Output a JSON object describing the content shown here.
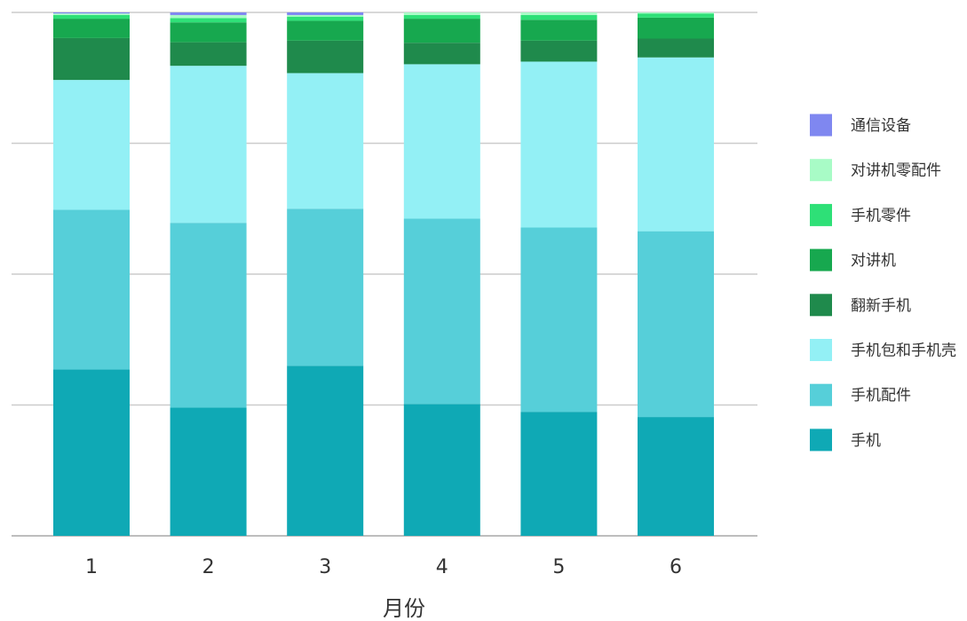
{
  "chart_data": {
    "type": "bar",
    "stacked": true,
    "normalized": true,
    "title": "",
    "xlabel": "月份",
    "ylabel": "",
    "ylim": [
      0,
      1
    ],
    "grid": true,
    "legend_position": "right",
    "categories": [
      "1",
      "2",
      "3",
      "4",
      "5",
      "6"
    ],
    "series": [
      {
        "name": "手机",
        "color": "#0fa9b5",
        "values": [
          0.318,
          0.245,
          0.325,
          0.252,
          0.237,
          0.227
        ]
      },
      {
        "name": "手机配件",
        "color": "#56cfd9",
        "values": [
          0.305,
          0.353,
          0.3,
          0.354,
          0.352,
          0.355
        ]
      },
      {
        "name": "手机包和手机壳",
        "color": "#93f0f5",
        "values": [
          0.248,
          0.3,
          0.259,
          0.295,
          0.317,
          0.332
        ]
      },
      {
        "name": "翻新手机",
        "color": "#1f8a4c",
        "values": [
          0.08,
          0.045,
          0.062,
          0.041,
          0.04,
          0.036
        ]
      },
      {
        "name": "对讲机",
        "color": "#17a84f",
        "values": [
          0.037,
          0.038,
          0.038,
          0.046,
          0.04,
          0.04
        ]
      },
      {
        "name": "手机零件",
        "color": "#2ee077",
        "values": [
          0.007,
          0.008,
          0.008,
          0.007,
          0.009,
          0.008
        ]
      },
      {
        "name": "对讲机零配件",
        "color": "#a8fbc6",
        "values": [
          0.003,
          0.006,
          0.003,
          0.005,
          0.005,
          0.002
        ]
      },
      {
        "name": "通信设备",
        "color": "#7f87f0",
        "values": [
          0.002,
          0.005,
          0.005,
          0,
          0,
          0
        ]
      }
    ]
  }
}
